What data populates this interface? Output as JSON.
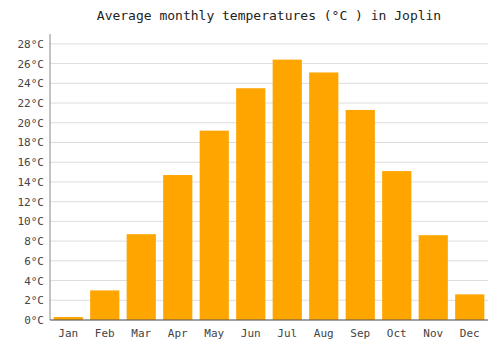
{
  "chart_data": {
    "type": "bar",
    "title": "Average monthly temperatures (°C ) in Joplin",
    "categories": [
      "Jan",
      "Feb",
      "Mar",
      "Apr",
      "May",
      "Jun",
      "Jul",
      "Aug",
      "Sep",
      "Oct",
      "Nov",
      "Dec"
    ],
    "values": [
      0.3,
      3.0,
      8.7,
      14.7,
      19.2,
      23.5,
      26.4,
      25.1,
      21.3,
      15.1,
      8.6,
      2.6
    ],
    "color": "#FFA500",
    "ylim": [
      0,
      29
    ],
    "yticks": [
      {
        "value": 0,
        "label": "0°C"
      },
      {
        "value": 2,
        "label": "2°C"
      },
      {
        "value": 4,
        "label": "4°C"
      },
      {
        "value": 6,
        "label": "6°C"
      },
      {
        "value": 8,
        "label": "8°C"
      },
      {
        "value": 10,
        "label": "10°C"
      },
      {
        "value": 12,
        "label": "12°C"
      },
      {
        "value": 14,
        "label": "14°C"
      },
      {
        "value": 16,
        "label": "16°C"
      },
      {
        "value": 18,
        "label": "18°C"
      },
      {
        "value": 20,
        "label": "20°C"
      },
      {
        "value": 22,
        "label": "22°C"
      },
      {
        "value": 24,
        "label": "24°C"
      },
      {
        "value": 26,
        "label": "26°C"
      },
      {
        "value": 28,
        "label": "28°C"
      }
    ],
    "grid": true
  }
}
